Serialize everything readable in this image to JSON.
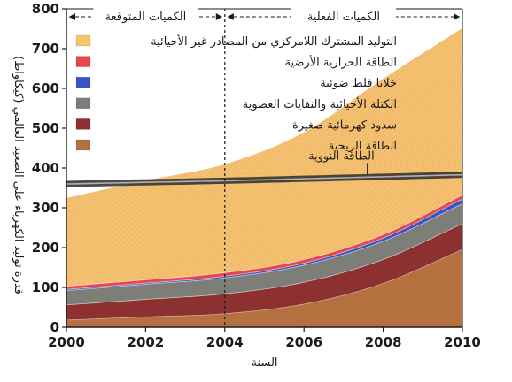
{
  "chart_data": {
    "type": "area",
    "xlabel": "السنة",
    "ylabel": "قدرة توليد الكهرباء على الصعيد العالمي (كيكاواط)",
    "x": [
      2000,
      2002,
      2004,
      2006,
      2008,
      2010
    ],
    "xlim": [
      2000,
      2010
    ],
    "ylim": [
      0,
      800
    ],
    "x_ticks": [
      "2000",
      "2002",
      "2004",
      "2006",
      "2008",
      "2010"
    ],
    "y_ticks": [
      "0",
      "100",
      "200",
      "300",
      "400",
      "500",
      "600",
      "700",
      "800"
    ],
    "grid": false,
    "stacked": true,
    "period_divider_x": 2004,
    "period_labels": {
      "expected": "الكميات المتوقعة",
      "actual": "الكميات الفعلية"
    },
    "series": [
      {
        "name": "الطاقة الريحية",
        "color": "#b5703f",
        "values": [
          18,
          26,
          34,
          58,
          110,
          195
        ]
      },
      {
        "name": "سدود كهرمائية صغيرة",
        "color": "#8c3030",
        "values": [
          38,
          44,
          50,
          55,
          60,
          65
        ]
      },
      {
        "name": "الكتلة الأحيائية والنفايات العضوية",
        "color": "#7e7e78",
        "values": [
          36,
          38,
          40,
          43,
          46,
          50
        ]
      },
      {
        "name": "خلايا فلط ضوئية",
        "color": "#3a52c8",
        "values": [
          3,
          3,
          4,
          5,
          8,
          12
        ]
      },
      {
        "name": "الطاقة الحرارية الأرضية",
        "color": "#e8474a",
        "values": [
          8,
          8,
          9,
          9,
          9,
          10
        ]
      },
      {
        "name": "التوليد المشترك اللامركزي من المصادر غير الأحيائية",
        "color": "#f7c469",
        "values": [
          222,
          250,
          273,
          320,
          392,
          420
        ]
      }
    ],
    "reference_line": {
      "name": "الطاقة النووية",
      "values": [
        360,
        364,
        368,
        373,
        378,
        383
      ]
    }
  }
}
